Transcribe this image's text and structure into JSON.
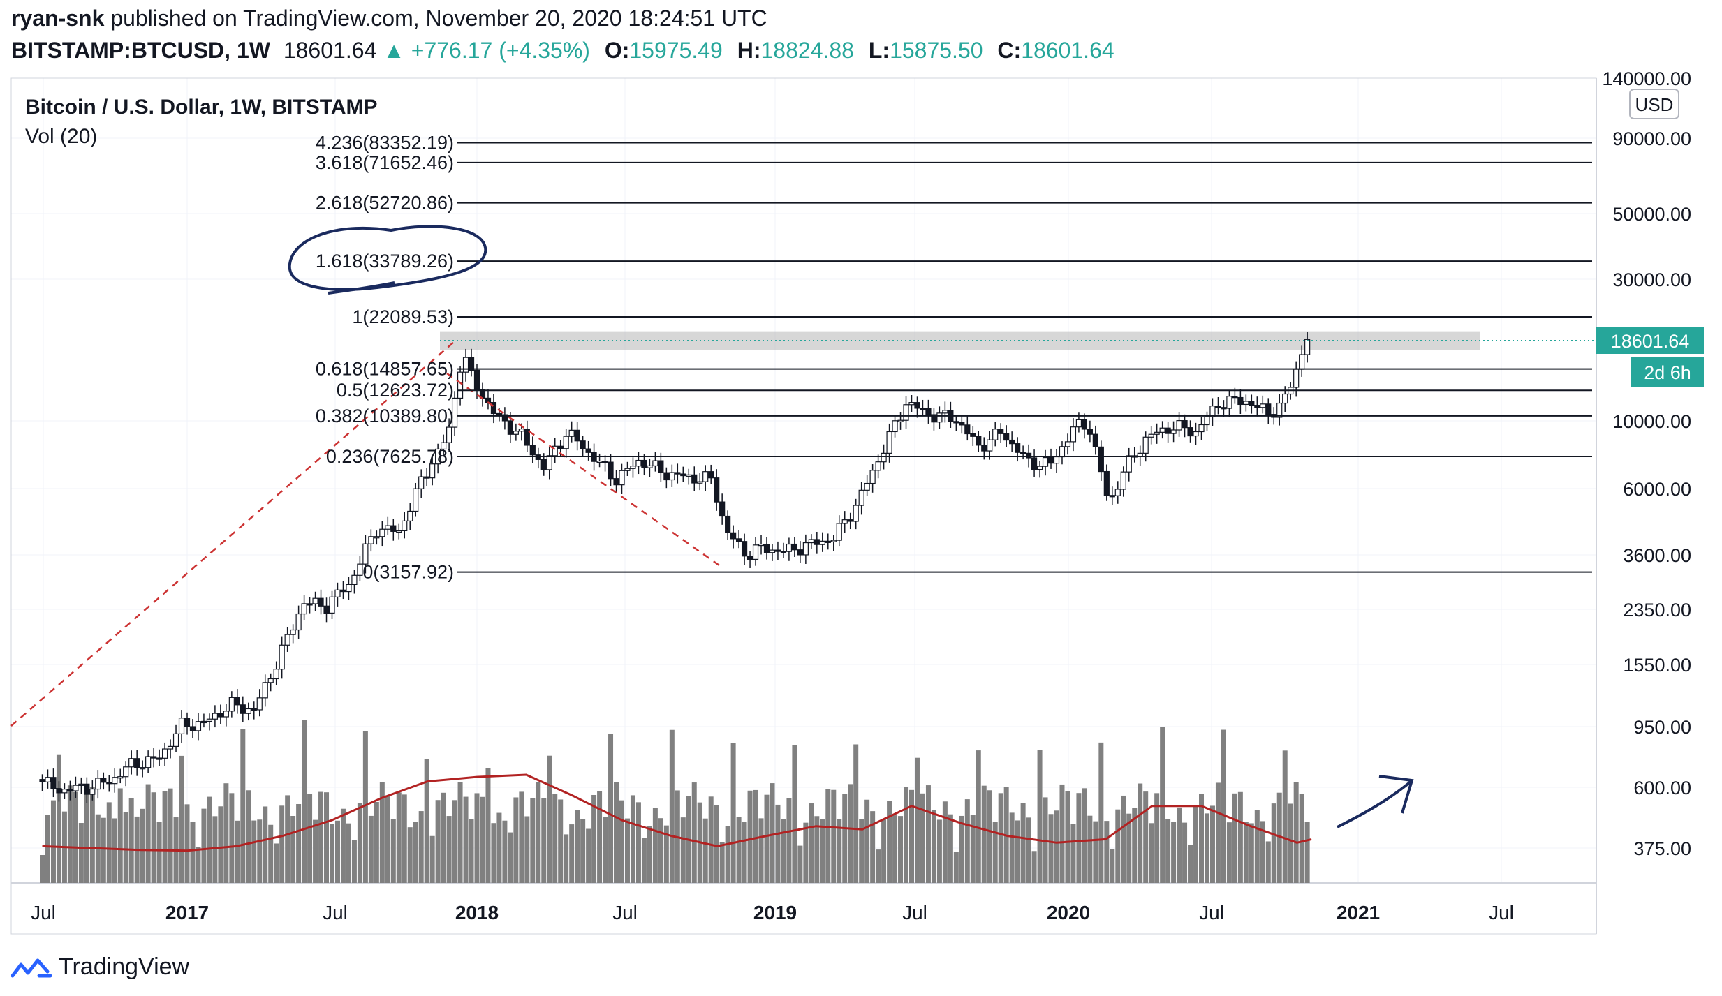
{
  "header": {
    "user": "ryan-snk",
    "published_text": "published on TradingView.com, November 20, 2020 18:24:51 UTC",
    "symbol": "BITSTAMP:BTCUSD, 1W",
    "last": "18601.64",
    "change": "▲ +776.17 (+4.35%)",
    "o_label": "O:",
    "o_value": "15975.49",
    "h_label": "H:",
    "h_value": "18824.88",
    "l_label": "L:",
    "l_value": "15875.50",
    "c_label": "C:",
    "c_value": "18601.64"
  },
  "footer": {
    "brand": "TradingView"
  },
  "colors": {
    "up": "#26a69a",
    "down": "#ef5350",
    "volume": "#808080",
    "vol_ma": "#b22222",
    "price_badge": "#26a69a"
  },
  "chart_data": {
    "type": "candlestick",
    "title": "Bitcoin / U.S. Dollar, 1W, BITSTAMP",
    "indicator": "Vol (20)",
    "currency": "USD",
    "y_scale": "log",
    "ylim": [
      300,
      140000
    ],
    "x_ticks": [
      "Jul",
      "2017",
      "Jul",
      "2018",
      "Jul",
      "2019",
      "Jul",
      "2020",
      "Jul",
      "2021",
      "Jul"
    ],
    "y_ticks": [
      "140000.00",
      "90000.00",
      "50000.00",
      "30000.00",
      "10000.00",
      "6000.00",
      "3600.00",
      "2350.00",
      "1550.00",
      "950.00",
      "600.00",
      "375.00"
    ],
    "fib_levels": [
      {
        "label": "4.236(83352.19)",
        "value": 83352.19
      },
      {
        "label": "3.618(71652.46)",
        "value": 71652.46
      },
      {
        "label": "2.618(52720.86)",
        "value": 52720.86
      },
      {
        "label": "1.618(33789.26)",
        "value": 33789.26
      },
      {
        "label": "1(22089.53)",
        "value": 22089.53
      },
      {
        "label": "0.618(14857.65)",
        "value": 14857.65
      },
      {
        "label": "0.5(12623.72)",
        "value": 12623.72
      },
      {
        "label": "0.382(10389.80)",
        "value": 10389.8
      },
      {
        "label": "0.236(7625.78)",
        "value": 7625.78
      },
      {
        "label": "0(3157.92)",
        "value": 3157.92
      }
    ],
    "resistance_zone": [
      17200,
      19800
    ],
    "last_price_label": "18601.64",
    "countdown_label": "2d 6h",
    "price_series": [
      [
        2016.5,
        650
      ],
      [
        2016.58,
        600
      ],
      [
        2016.67,
        610
      ],
      [
        2016.75,
        640
      ],
      [
        2016.83,
        730
      ],
      [
        2016.92,
        760
      ],
      [
        2017.0,
        980
      ],
      [
        2017.08,
        1000
      ],
      [
        2017.17,
        1150
      ],
      [
        2017.25,
        1100
      ],
      [
        2017.33,
        1600
      ],
      [
        2017.42,
        2500
      ],
      [
        2017.5,
        2450
      ],
      [
        2017.58,
        2900
      ],
      [
        2017.67,
        4400
      ],
      [
        2017.75,
        4300
      ],
      [
        2017.83,
        6400
      ],
      [
        2017.92,
        9000
      ],
      [
        2017.97,
        17000
      ],
      [
        2018.0,
        14000
      ],
      [
        2018.08,
        10500
      ],
      [
        2018.17,
        9000
      ],
      [
        2018.25,
        7000
      ],
      [
        2018.33,
        9200
      ],
      [
        2018.42,
        7600
      ],
      [
        2018.5,
        6400
      ],
      [
        2018.58,
        7400
      ],
      [
        2018.67,
        6700
      ],
      [
        2018.75,
        6500
      ],
      [
        2018.83,
        6400
      ],
      [
        2018.88,
        4300
      ],
      [
        2018.95,
        3600
      ],
      [
        2019.0,
        3800
      ],
      [
        2019.08,
        3700
      ],
      [
        2019.17,
        3900
      ],
      [
        2019.25,
        4100
      ],
      [
        2019.33,
        5300
      ],
      [
        2019.42,
        8000
      ],
      [
        2019.5,
        11500
      ],
      [
        2019.58,
        10500
      ],
      [
        2019.67,
        10200
      ],
      [
        2019.75,
        8200
      ],
      [
        2019.83,
        9200
      ],
      [
        2019.92,
        7300
      ],
      [
        2020.0,
        7200
      ],
      [
        2020.08,
        9500
      ],
      [
        2020.13,
        9800
      ],
      [
        2020.2,
        5300
      ],
      [
        2020.25,
        6800
      ],
      [
        2020.33,
        8800
      ],
      [
        2020.42,
        9600
      ],
      [
        2020.5,
        9200
      ],
      [
        2020.58,
        11500
      ],
      [
        2020.67,
        11700
      ],
      [
        2020.75,
        10600
      ],
      [
        2020.8,
        11400
      ],
      [
        2020.83,
        13300
      ],
      [
        2020.88,
        18601.64
      ]
    ],
    "volume_ma_series": [
      [
        2016.5,
        390
      ],
      [
        2016.83,
        380
      ],
      [
        2017.0,
        378
      ],
      [
        2017.17,
        390
      ],
      [
        2017.33,
        420
      ],
      [
        2017.5,
        470
      ],
      [
        2017.67,
        550
      ],
      [
        2017.83,
        620
      ],
      [
        2018.0,
        640
      ],
      [
        2018.17,
        650
      ],
      [
        2018.33,
        560
      ],
      [
        2018.5,
        470
      ],
      [
        2018.67,
        420
      ],
      [
        2018.83,
        390
      ],
      [
        2019.0,
        420
      ],
      [
        2019.17,
        450
      ],
      [
        2019.33,
        440
      ],
      [
        2019.5,
        520
      ],
      [
        2019.67,
        460
      ],
      [
        2019.83,
        420
      ],
      [
        2020.0,
        400
      ],
      [
        2020.17,
        410
      ],
      [
        2020.33,
        520
      ],
      [
        2020.5,
        520
      ],
      [
        2020.67,
        450
      ],
      [
        2020.83,
        400
      ],
      [
        2020.88,
        410
      ]
    ]
  }
}
